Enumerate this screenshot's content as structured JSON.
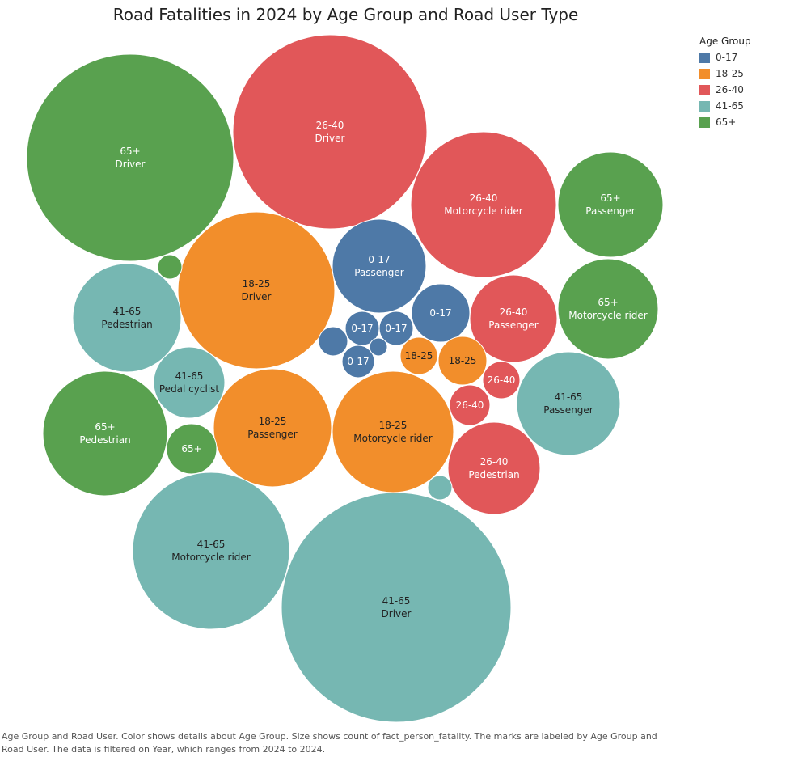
{
  "chart_data": {
    "type": "bubble",
    "title": "Road Fatalities in 2024 by Age Group and Road User Type",
    "legend": {
      "title": "Age Group",
      "placement": "top-right",
      "items": [
        {
          "label": "0-17",
          "color": "#4e79a7"
        },
        {
          "label": "18-25",
          "color": "#f28e2b"
        },
        {
          "label": "26-40",
          "color": "#e15759"
        },
        {
          "label": "41-65",
          "color": "#76b7b2"
        },
        {
          "label": "65+",
          "color": "#59a14f"
        }
      ]
    },
    "bubbles": [
      {
        "age": "41-65",
        "user": "Driver",
        "label": "41-65",
        "sublabel": "Driver",
        "value": 100
      },
      {
        "age": "65+",
        "user": "Driver",
        "label": "65+",
        "sublabel": "Driver",
        "value": 81
      },
      {
        "age": "26-40",
        "user": "Driver",
        "label": "26-40",
        "sublabel": "Driver",
        "value": 72
      },
      {
        "age": "18-25",
        "user": "Driver",
        "label": "18-25",
        "sublabel": "Driver",
        "value": 47
      },
      {
        "age": "41-65",
        "user": "Motorcycle rider",
        "label": "41-65",
        "sublabel": "Motorcycle rider",
        "value": 47
      },
      {
        "age": "26-40",
        "user": "Motorcycle rider",
        "label": "26-40",
        "sublabel": "Motorcycle rider",
        "value": 41
      },
      {
        "age": "18-25",
        "user": "Motorcycle rider",
        "label": "18-25",
        "sublabel": "Motorcycle rider",
        "value": 28
      },
      {
        "age": "65+",
        "user": "Pedestrian",
        "label": "65+",
        "sublabel": "Pedestrian",
        "value": 29
      },
      {
        "age": "18-25",
        "user": "Passenger",
        "label": "18-25",
        "sublabel": "Passenger",
        "value": 27
      },
      {
        "age": "41-65",
        "user": "Passenger",
        "label": "41-65",
        "sublabel": "Passenger",
        "value": 20
      },
      {
        "age": "41-65",
        "user": "Pedestrian",
        "label": "41-65",
        "sublabel": "Pedestrian",
        "value": 22
      },
      {
        "age": "65+",
        "user": "Passenger",
        "label": "65+",
        "sublabel": "Passenger",
        "value": 21
      },
      {
        "age": "65+",
        "user": "Motorcycle rider",
        "label": "65+",
        "sublabel": "Motorcycle rider",
        "value": 19
      },
      {
        "age": "0-17",
        "user": "Passenger",
        "label": "0-17",
        "sublabel": "Passenger",
        "value": 17
      },
      {
        "age": "26-40",
        "user": "Pedestrian",
        "label": "26-40",
        "sublabel": "Pedestrian",
        "value": 16
      },
      {
        "age": "26-40",
        "user": "Passenger",
        "label": "26-40",
        "sublabel": "Passenger",
        "value": 14.5
      },
      {
        "age": "41-65",
        "user": "Pedal cyclist",
        "label": "41-65",
        "sublabel": "Pedal cyclist",
        "value": 9.5
      },
      {
        "age": "0-17",
        "user": "",
        "label": "0-17",
        "sublabel": "",
        "value": 6.5
      },
      {
        "age": "18-25",
        "user": "",
        "label": "18-25",
        "sublabel": "",
        "value": 4.8
      },
      {
        "age": "65+",
        "user": "",
        "label": "65+",
        "sublabel": "",
        "value": 4.8
      },
      {
        "age": "26-40",
        "user": "",
        "label": "26-40",
        "sublabel": "",
        "value": 3.3
      },
      {
        "age": "26-40",
        "user": "",
        "label": "26-40",
        "sublabel": "",
        "value": 2.7
      },
      {
        "age": "0-17",
        "user": "",
        "label": "0-17",
        "sublabel": "",
        "value": 2.2
      },
      {
        "age": "0-17",
        "user": "",
        "label": "0-17",
        "sublabel": "",
        "value": 2.2
      },
      {
        "age": "18-25",
        "user": "",
        "label": "18-25",
        "sublabel": "",
        "value": 2.8
      },
      {
        "age": "0-17",
        "user": "",
        "label": "0-17",
        "sublabel": "",
        "value": 2.0
      },
      {
        "age": "0-17",
        "user": "",
        "label": "",
        "sublabel": "",
        "value": 1.6
      },
      {
        "age": "65+",
        "user": "",
        "label": "",
        "sublabel": "",
        "value": 1.0
      },
      {
        "age": "41-65",
        "user": "",
        "label": "",
        "sublabel": "",
        "value": 1.0
      },
      {
        "age": "0-17",
        "user": "",
        "label": "",
        "sublabel": "",
        "value": 0.6
      }
    ],
    "caption": "Age Group and Road User.  Color shows details about Age Group.  Size shows count of fact_person_fatality.  The marks are labeled by Age Group and Road User. The data is filtered on Year, which ranges from 2024 to 2024."
  }
}
